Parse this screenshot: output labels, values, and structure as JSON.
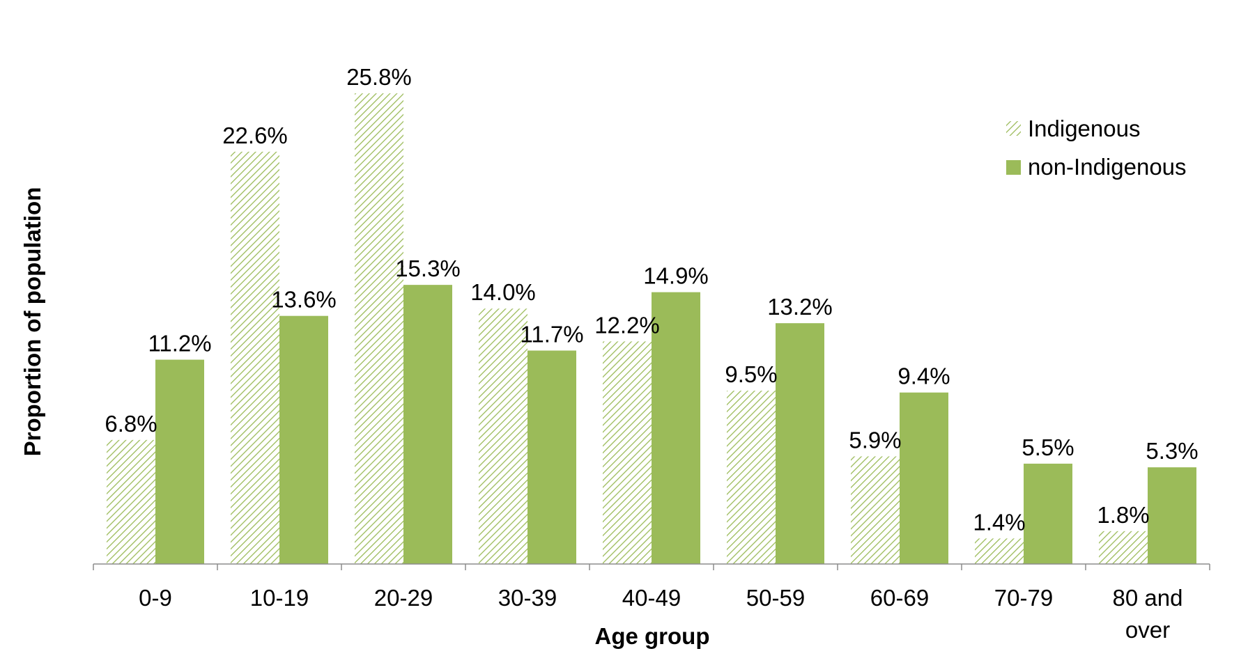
{
  "chart_data": {
    "type": "bar",
    "title": "",
    "xlabel": "Age group",
    "ylabel": "Proportion of population",
    "categories": [
      [
        "0-9"
      ],
      [
        "10-19"
      ],
      [
        "20-29"
      ],
      [
        "30-39"
      ],
      [
        "40-49"
      ],
      [
        "50-59"
      ],
      [
        "60-69"
      ],
      [
        "70-79"
      ],
      [
        "80 and",
        "over"
      ]
    ],
    "series": [
      {
        "name": "Indigenous",
        "values": [
          6.8,
          22.6,
          25.8,
          14.0,
          12.2,
          9.5,
          5.9,
          1.4,
          1.8
        ],
        "labels": [
          "6.8%",
          "22.6%",
          "25.8%",
          "14.0%",
          "12.2%",
          "9.5%",
          "5.9%",
          "1.4%",
          "1.8%"
        ],
        "color": "#9BBB59",
        "pattern": "diagonal-hatch"
      },
      {
        "name": "non-Indigenous",
        "values": [
          11.2,
          13.6,
          15.3,
          11.7,
          14.9,
          13.2,
          9.4,
          5.5,
          5.3
        ],
        "labels": [
          "11.2%",
          "13.6%",
          "15.3%",
          "11.7%",
          "14.9%",
          "13.2%",
          "9.4%",
          "5.5%",
          "5.3%"
        ],
        "color": "#9BBB59",
        "pattern": "solid"
      }
    ],
    "ylim": [
      0,
      30
    ],
    "grid": false,
    "y_axis_visible": false,
    "legend": "top-right"
  }
}
